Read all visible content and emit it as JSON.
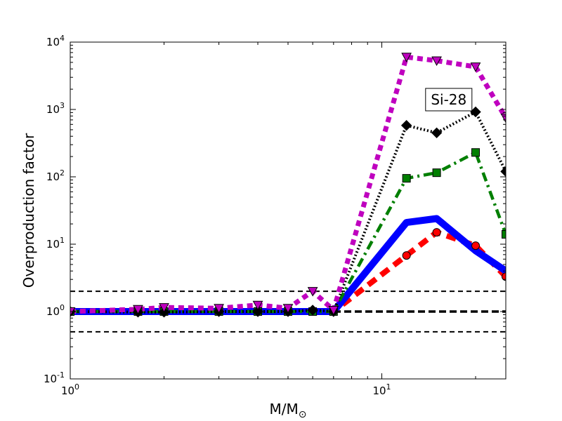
{
  "chart_data": {
    "type": "line",
    "title": "",
    "xlabel": "M/M",
    "xlabel_subscript": "⊙",
    "ylabel": "Overproduction factor",
    "x_scale": "log",
    "y_scale": "log",
    "xlim": [
      1,
      25
    ],
    "ylim": [
      0.1,
      10000
    ],
    "x_ticks": [
      {
        "value": 1,
        "base": "10",
        "exp": "0"
      },
      {
        "value": 10,
        "base": "10",
        "exp": "1"
      }
    ],
    "y_ticks": [
      {
        "value": 0.1,
        "base": "10",
        "exp": "-1"
      },
      {
        "value": 1,
        "base": "10",
        "exp": "0"
      },
      {
        "value": 10,
        "base": "10",
        "exp": "1"
      },
      {
        "value": 100,
        "base": "10",
        "exp": "2"
      },
      {
        "value": 1000,
        "base": "10",
        "exp": "3"
      },
      {
        "value": 10000,
        "base": "10",
        "exp": "4"
      }
    ],
    "grid": false,
    "annotation": {
      "text": "Si-28",
      "x": 16.4,
      "y": 1400
    },
    "reference_lines": [
      {
        "y": 2.0,
        "style": "dashed",
        "color": "#000000",
        "weight": "thin"
      },
      {
        "y": 1.0,
        "style": "dashed",
        "color": "#000000",
        "weight": "thick"
      },
      {
        "y": 0.5,
        "style": "dashed",
        "color": "#000000",
        "weight": "thin"
      }
    ],
    "series": [
      {
        "color": "#ff0000",
        "line_style": "dashed-thick",
        "marker": "circle",
        "x": [
          1,
          1.65,
          2,
          3,
          4,
          5,
          6,
          7,
          12,
          15,
          20,
          25
        ],
        "y": [
          1.0,
          1.0,
          1.0,
          1.0,
          1.0,
          1.0,
          1.0,
          1.0,
          6.8,
          15.0,
          9.5,
          3.3
        ]
      },
      {
        "color": "#0000ff",
        "line_style": "solid-thick",
        "marker": "none",
        "x": [
          1,
          1.65,
          2,
          3,
          4,
          5,
          6,
          7,
          12,
          15,
          20,
          25
        ],
        "y": [
          1.0,
          1.0,
          1.0,
          1.0,
          1.0,
          1.0,
          1.0,
          1.0,
          21.0,
          24.0,
          8.0,
          4.0
        ]
      },
      {
        "color": "#007f00",
        "line_style": "dashdot",
        "marker": "square",
        "x": [
          1,
          1.65,
          2,
          3,
          4,
          5,
          6,
          7,
          12,
          15,
          20,
          25
        ],
        "y": [
          1.0,
          1.0,
          1.0,
          1.0,
          1.0,
          1.0,
          1.0,
          1.0,
          95,
          115,
          230,
          14
        ]
      },
      {
        "color": "#000000",
        "line_style": "dotted",
        "marker": "diamond",
        "x": [
          1,
          1.65,
          2,
          3,
          4,
          5,
          6,
          7,
          12,
          15,
          20,
          25
        ],
        "y": [
          1.0,
          0.98,
          0.98,
          1.0,
          1.0,
          1.0,
          1.05,
          1.0,
          580,
          450,
          920,
          120
        ]
      },
      {
        "color": "#bf00bf",
        "line_style": "dotted-thick",
        "marker": "triangle-down",
        "x": [
          1,
          1.65,
          2,
          3,
          4,
          5,
          6,
          7,
          12,
          15,
          20,
          25
        ],
        "y": [
          1.0,
          1.08,
          1.15,
          1.12,
          1.25,
          1.12,
          2.0,
          1.05,
          6000,
          5300,
          4300,
          750
        ]
      }
    ]
  }
}
